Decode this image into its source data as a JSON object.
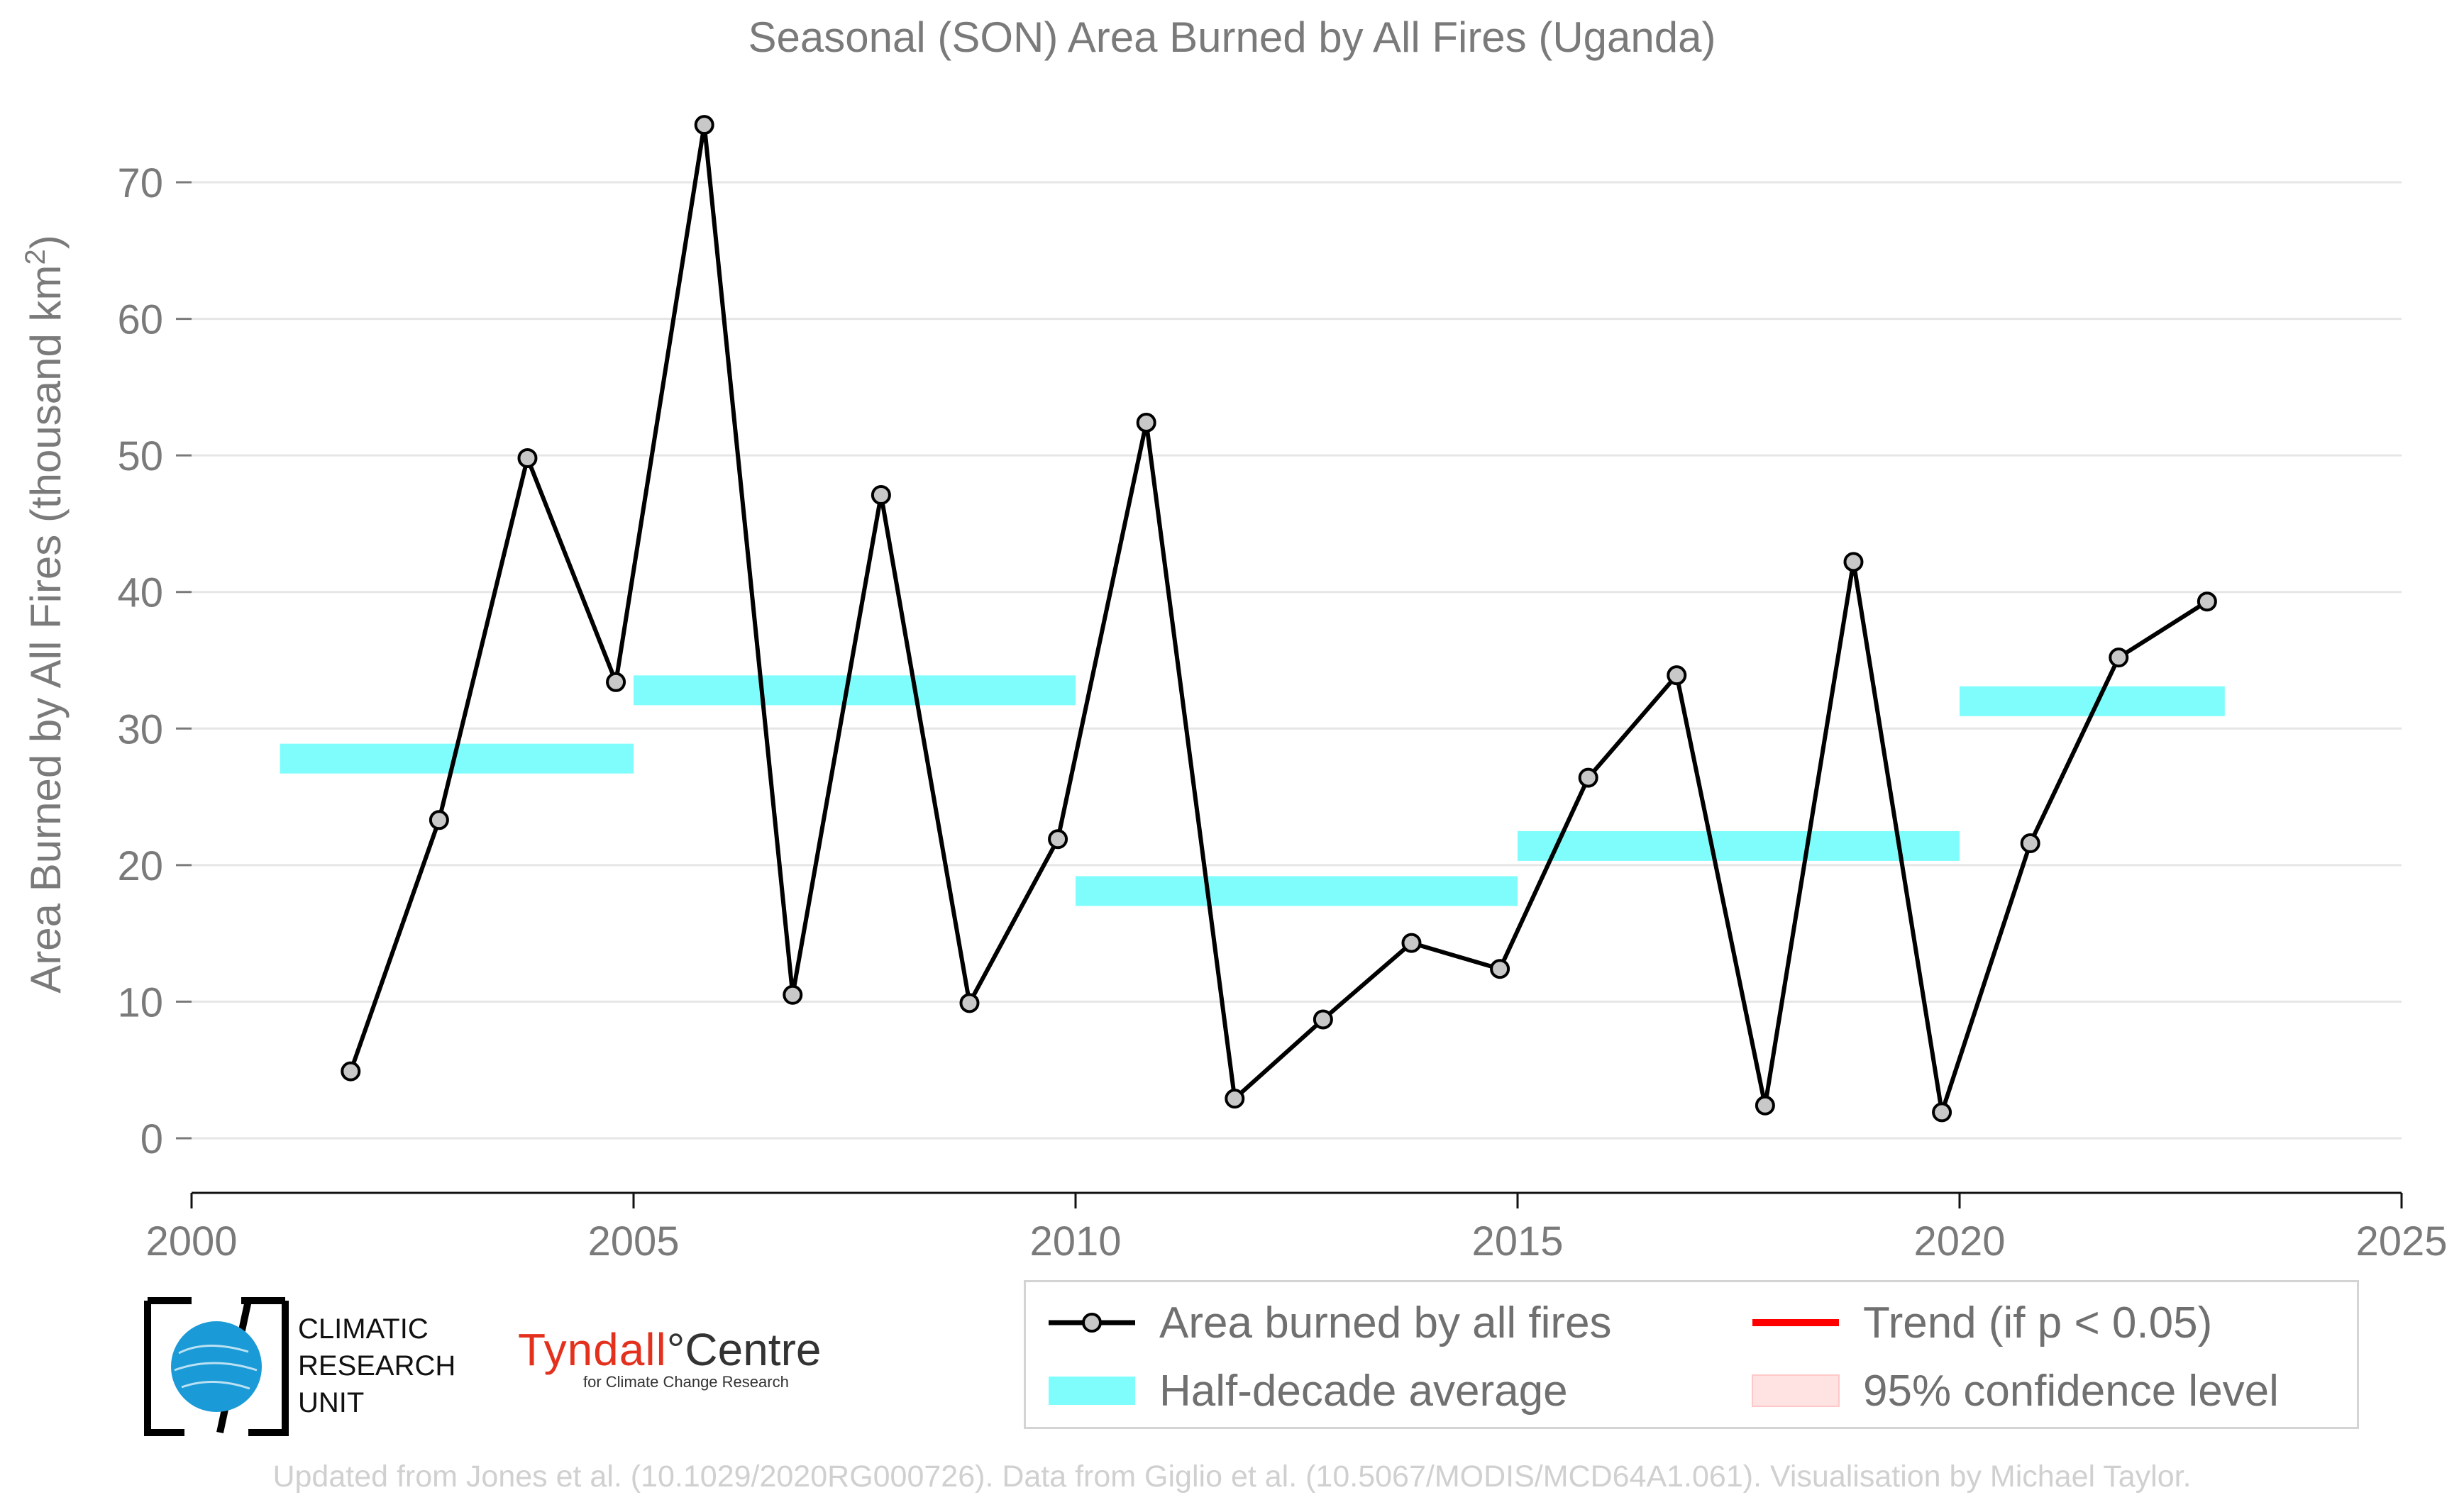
{
  "chart_data": {
    "type": "line",
    "title": "Seasonal (SON) Area Burned by All Fires (Uganda)",
    "ylabel": "Area Burned by All Fires (thousand km",
    "ylabel_sup": "2",
    "ylabel_close": ")",
    "xlabel": "",
    "xlim": [
      2000,
      2025
    ],
    "ylim": [
      -4,
      74
    ],
    "x_ticks": [
      2000,
      2005,
      2010,
      2015,
      2020,
      2025
    ],
    "y_ticks": [
      0,
      10,
      20,
      30,
      40,
      50,
      60,
      70
    ],
    "grid": "horizontal",
    "legend_position": "bottom-right",
    "series": [
      {
        "name": "Area burned by all fires",
        "color": "#000000",
        "marker_fill": "#c8c8c8",
        "x": [
          2001.8,
          2002.8,
          2003.8,
          2004.8,
          2005.8,
          2006.8,
          2007.8,
          2008.8,
          2009.8,
          2010.8,
          2011.8,
          2012.8,
          2013.8,
          2014.8,
          2015.8,
          2016.8,
          2017.8,
          2018.8,
          2019.8,
          2020.8,
          2021.8,
          2022.8
        ],
        "values": [
          4.9,
          23.3,
          49.8,
          33.4,
          74.2,
          10.5,
          47.1,
          9.9,
          21.9,
          52.4,
          2.9,
          8.7,
          14.3,
          12.4,
          26.4,
          33.9,
          2.4,
          42.2,
          1.9,
          21.6,
          35.2,
          39.3
        ]
      }
    ],
    "half_decade_averages": {
      "name": "Half-decade average",
      "color": "#7ffcfc",
      "periods": [
        {
          "start": 2001,
          "end": 2005,
          "value": 27.8
        },
        {
          "start": 2005,
          "end": 2010,
          "value": 32.8
        },
        {
          "start": 2010,
          "end": 2015,
          "value": 18.1
        },
        {
          "start": 2015,
          "end": 2020,
          "value": 21.4
        },
        {
          "start": 2020,
          "end": 2023,
          "value": 32.0
        }
      ]
    },
    "legend": [
      {
        "label": "Area burned by all fires",
        "kind": "line-marker"
      },
      {
        "label": "Trend (if p < 0.05)",
        "kind": "line",
        "color": "#ff0000"
      },
      {
        "label": "Half-decade average",
        "kind": "band",
        "color": "#7ffcfc"
      },
      {
        "label": "95% confidence level",
        "kind": "band",
        "color": "#ffe2e2"
      }
    ]
  },
  "logos": {
    "cru_lines": [
      "CLIMATIC",
      "RESEARCH",
      "UNIT"
    ],
    "tyndall_name": "Tyndall",
    "tyndall_centre": "°Centre",
    "tyndall_sub": "for Climate Change Research"
  },
  "credit": "Updated from Jones et al. (10.1029/2020RG000726). Data from Giglio et al. (10.5067/MODIS/MCD64A1.061). Visualisation by Michael Taylor."
}
